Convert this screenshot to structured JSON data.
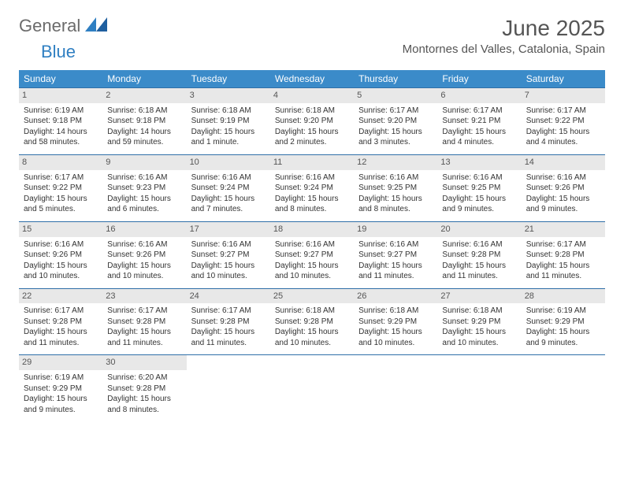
{
  "brand": {
    "part1": "General",
    "part2": "Blue"
  },
  "title": "June 2025",
  "location": "Montornes del Valles, Catalonia, Spain",
  "weekdays": [
    "Sunday",
    "Monday",
    "Tuesday",
    "Wednesday",
    "Thursday",
    "Friday",
    "Saturday"
  ],
  "colors": {
    "header_bg": "#3b8bc9",
    "header_fg": "#ffffff",
    "daynum_bg": "#e8e8e8",
    "rule": "#2f6fa8",
    "text": "#333333",
    "brand_gray": "#6b6b6b",
    "brand_blue": "#2f7fc2"
  },
  "typography": {
    "title_fontsize": 28,
    "location_fontsize": 15,
    "weekday_fontsize": 12,
    "cell_fontsize": 10
  },
  "calendar": {
    "type": "table",
    "columns": 7,
    "rows": 5,
    "days": [
      {
        "n": "1",
        "sr": "6:19 AM",
        "ss": "9:18 PM",
        "dl": "14 hours and 58 minutes."
      },
      {
        "n": "2",
        "sr": "6:18 AM",
        "ss": "9:18 PM",
        "dl": "14 hours and 59 minutes."
      },
      {
        "n": "3",
        "sr": "6:18 AM",
        "ss": "9:19 PM",
        "dl": "15 hours and 1 minute."
      },
      {
        "n": "4",
        "sr": "6:18 AM",
        "ss": "9:20 PM",
        "dl": "15 hours and 2 minutes."
      },
      {
        "n": "5",
        "sr": "6:17 AM",
        "ss": "9:20 PM",
        "dl": "15 hours and 3 minutes."
      },
      {
        "n": "6",
        "sr": "6:17 AM",
        "ss": "9:21 PM",
        "dl": "15 hours and 4 minutes."
      },
      {
        "n": "7",
        "sr": "6:17 AM",
        "ss": "9:22 PM",
        "dl": "15 hours and 4 minutes."
      },
      {
        "n": "8",
        "sr": "6:17 AM",
        "ss": "9:22 PM",
        "dl": "15 hours and 5 minutes."
      },
      {
        "n": "9",
        "sr": "6:16 AM",
        "ss": "9:23 PM",
        "dl": "15 hours and 6 minutes."
      },
      {
        "n": "10",
        "sr": "6:16 AM",
        "ss": "9:24 PM",
        "dl": "15 hours and 7 minutes."
      },
      {
        "n": "11",
        "sr": "6:16 AM",
        "ss": "9:24 PM",
        "dl": "15 hours and 8 minutes."
      },
      {
        "n": "12",
        "sr": "6:16 AM",
        "ss": "9:25 PM",
        "dl": "15 hours and 8 minutes."
      },
      {
        "n": "13",
        "sr": "6:16 AM",
        "ss": "9:25 PM",
        "dl": "15 hours and 9 minutes."
      },
      {
        "n": "14",
        "sr": "6:16 AM",
        "ss": "9:26 PM",
        "dl": "15 hours and 9 minutes."
      },
      {
        "n": "15",
        "sr": "6:16 AM",
        "ss": "9:26 PM",
        "dl": "15 hours and 10 minutes."
      },
      {
        "n": "16",
        "sr": "6:16 AM",
        "ss": "9:26 PM",
        "dl": "15 hours and 10 minutes."
      },
      {
        "n": "17",
        "sr": "6:16 AM",
        "ss": "9:27 PM",
        "dl": "15 hours and 10 minutes."
      },
      {
        "n": "18",
        "sr": "6:16 AM",
        "ss": "9:27 PM",
        "dl": "15 hours and 10 minutes."
      },
      {
        "n": "19",
        "sr": "6:16 AM",
        "ss": "9:27 PM",
        "dl": "15 hours and 11 minutes."
      },
      {
        "n": "20",
        "sr": "6:16 AM",
        "ss": "9:28 PM",
        "dl": "15 hours and 11 minutes."
      },
      {
        "n": "21",
        "sr": "6:17 AM",
        "ss": "9:28 PM",
        "dl": "15 hours and 11 minutes."
      },
      {
        "n": "22",
        "sr": "6:17 AM",
        "ss": "9:28 PM",
        "dl": "15 hours and 11 minutes."
      },
      {
        "n": "23",
        "sr": "6:17 AM",
        "ss": "9:28 PM",
        "dl": "15 hours and 11 minutes."
      },
      {
        "n": "24",
        "sr": "6:17 AM",
        "ss": "9:28 PM",
        "dl": "15 hours and 11 minutes."
      },
      {
        "n": "25",
        "sr": "6:18 AM",
        "ss": "9:28 PM",
        "dl": "15 hours and 10 minutes."
      },
      {
        "n": "26",
        "sr": "6:18 AM",
        "ss": "9:29 PM",
        "dl": "15 hours and 10 minutes."
      },
      {
        "n": "27",
        "sr": "6:18 AM",
        "ss": "9:29 PM",
        "dl": "15 hours and 10 minutes."
      },
      {
        "n": "28",
        "sr": "6:19 AM",
        "ss": "9:29 PM",
        "dl": "15 hours and 9 minutes."
      },
      {
        "n": "29",
        "sr": "6:19 AM",
        "ss": "9:29 PM",
        "dl": "15 hours and 9 minutes."
      },
      {
        "n": "30",
        "sr": "6:20 AM",
        "ss": "9:28 PM",
        "dl": "15 hours and 8 minutes."
      }
    ],
    "labels": {
      "sunrise": "Sunrise:",
      "sunset": "Sunset:",
      "daylight": "Daylight:"
    }
  }
}
